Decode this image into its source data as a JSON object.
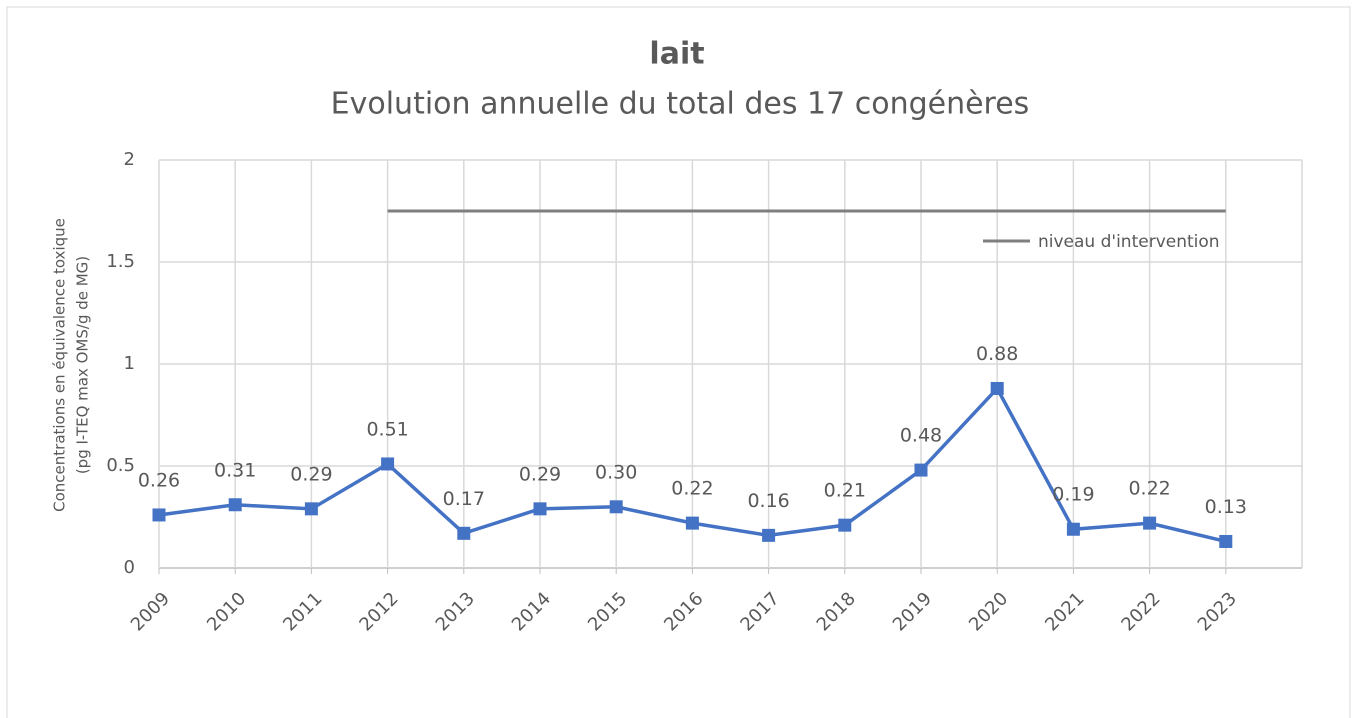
{
  "chart_data": {
    "type": "line",
    "title": "lait",
    "subtitle": "Evolution annuelle du total des 17 congénères",
    "ylabel": [
      "Concentrations en équivalence toxique",
      "(pg I-TEQ max OMS/g de MG)"
    ],
    "categories": [
      "2009",
      "2010",
      "2011",
      "2012",
      "2013",
      "2014",
      "2015",
      "2016",
      "2017",
      "2018",
      "2019",
      "2020",
      "2021",
      "2022",
      "2023"
    ],
    "series": [
      {
        "name": null,
        "color": "#4472c4",
        "values": [
          0.26,
          0.31,
          0.29,
          0.51,
          0.17,
          0.29,
          0.3,
          0.22,
          0.16,
          0.21,
          0.48,
          0.88,
          0.19,
          0.22,
          0.13
        ],
        "value_labels": [
          "0.26",
          "0.31",
          "0.29",
          "0.51",
          "0.17",
          "0.29",
          "0.30",
          "0.22",
          "0.16",
          "0.21",
          "0.48",
          "0.88",
          "0.19",
          "0.22",
          "0.13"
        ]
      },
      {
        "name": "niveau d'intervention",
        "color": "#7f7f7f",
        "values": [
          null,
          null,
          null,
          1.75,
          1.75,
          1.75,
          1.75,
          1.75,
          1.75,
          1.75,
          1.75,
          1.75,
          1.75,
          1.75,
          1.75
        ]
      }
    ],
    "ylim": [
      0,
      2
    ],
    "yticks": [
      0,
      0.5,
      1,
      1.5,
      2
    ],
    "grid": true,
    "legend": "upper right"
  }
}
